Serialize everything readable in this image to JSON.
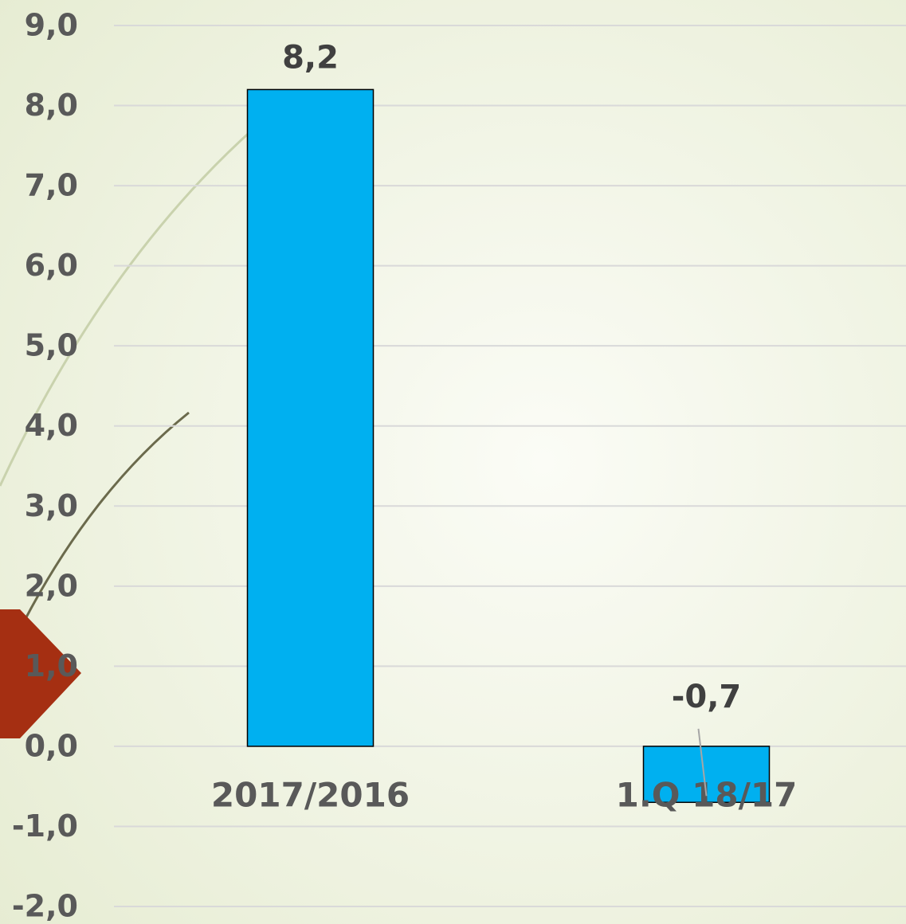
{
  "chart_data": {
    "type": "bar",
    "categories": [
      "2017/2016",
      "1.Q 18/17"
    ],
    "values": [
      8.2,
      -0.7
    ],
    "value_labels": [
      "8,2",
      "-0,7"
    ],
    "color": "#00b0f0",
    "ylim": [
      -2,
      9
    ],
    "yticks": [
      {
        "value": -2,
        "label": "-2,0"
      },
      {
        "value": -1,
        "label": "-1,0"
      },
      {
        "value": 0,
        "label": "0,0"
      },
      {
        "value": 1,
        "label": "1,0"
      },
      {
        "value": 2,
        "label": "2,0"
      },
      {
        "value": 3,
        "label": "3,0"
      },
      {
        "value": 4,
        "label": "4,0"
      },
      {
        "value": 5,
        "label": "5,0"
      },
      {
        "value": 6,
        "label": "6,0"
      },
      {
        "value": 7,
        "label": "7,0"
      },
      {
        "value": 8,
        "label": "8,0"
      },
      {
        "value": 9,
        "label": "9,0"
      }
    ],
    "grid": true
  }
}
